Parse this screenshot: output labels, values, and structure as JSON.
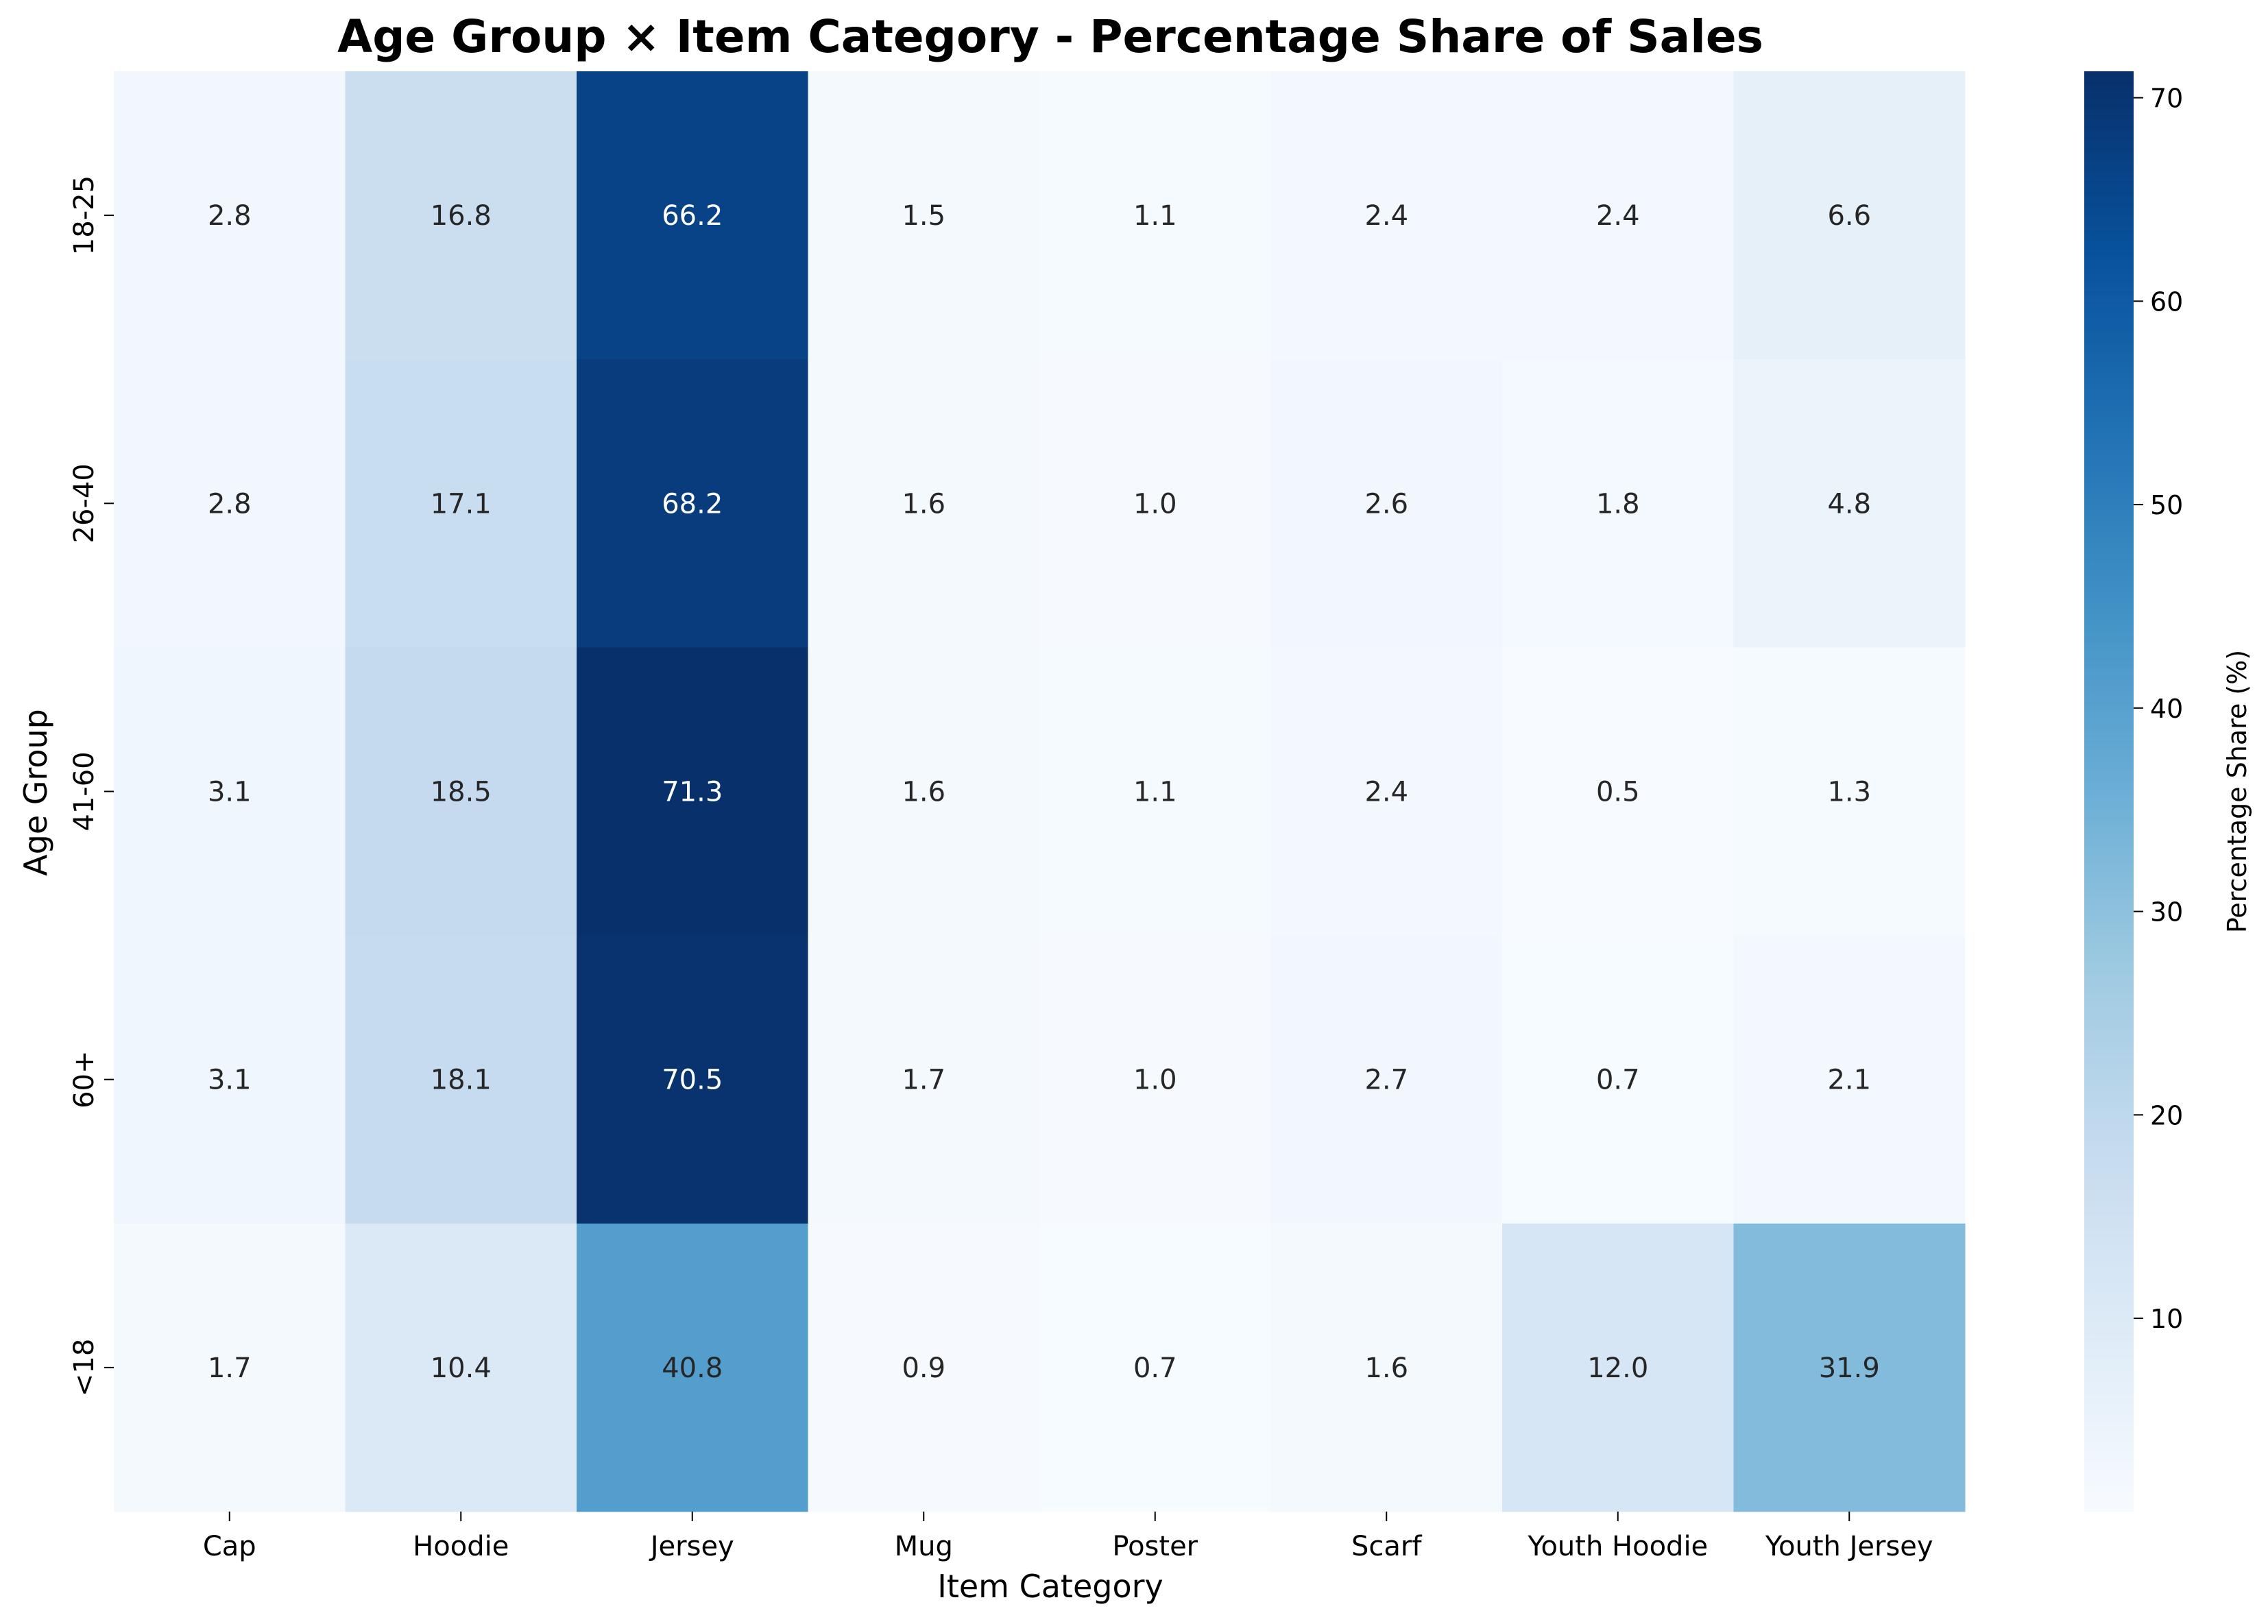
{
  "chart_data": {
    "type": "heatmap",
    "title": "Age Group × Item Category - Percentage Share of Sales",
    "xlabel": "Item Category",
    "ylabel": "Age Group",
    "x_categories": [
      "Cap",
      "Hoodie",
      "Jersey",
      "Mug",
      "Poster",
      "Scarf",
      "Youth Hoodie",
      "Youth Jersey"
    ],
    "y_categories": [
      "18-25",
      "26-40",
      "41-60",
      "60+",
      "<18"
    ],
    "values": [
      [
        2.8,
        16.8,
        66.2,
        1.5,
        1.1,
        2.4,
        2.4,
        6.6
      ],
      [
        2.8,
        17.1,
        68.2,
        1.6,
        1.0,
        2.6,
        1.8,
        4.8
      ],
      [
        3.1,
        18.5,
        71.3,
        1.6,
        1.1,
        2.4,
        0.5,
        1.3
      ],
      [
        3.1,
        18.1,
        70.5,
        1.7,
        1.0,
        2.7,
        0.7,
        2.1
      ],
      [
        1.7,
        10.4,
        40.8,
        0.9,
        0.7,
        1.6,
        12.0,
        31.9
      ]
    ],
    "value_format": "0.1f",
    "colormap": "Blues",
    "color_range": [
      0.5,
      71.3
    ],
    "colorbar": {
      "label": "Percentage Share (%)",
      "ticks": [
        10,
        20,
        30,
        40,
        50,
        60,
        70
      ]
    }
  }
}
